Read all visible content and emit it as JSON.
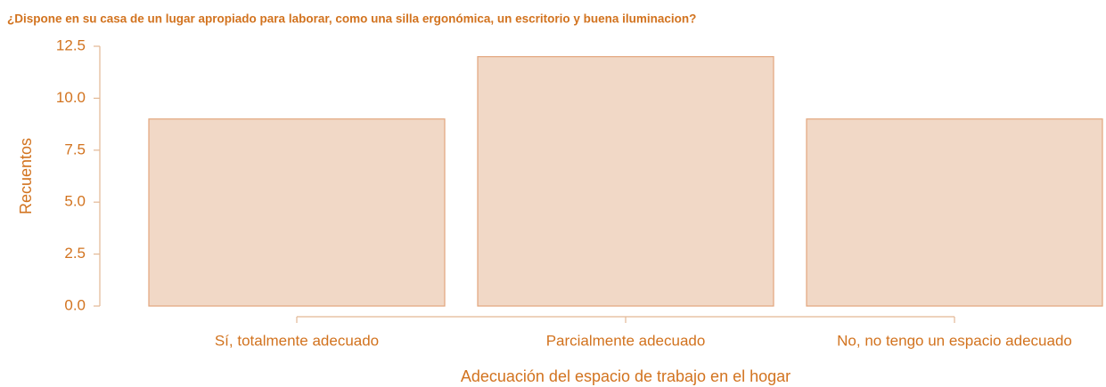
{
  "chart_data": {
    "type": "bar",
    "title": "¿Dispone en su casa de un lugar apropiado para laborar, como una silla ergonómica, un escritorio y buena iluminacion?",
    "x_label": "Adecuación del espacio de trabajo en el hogar",
    "y_label": "Recuentos",
    "categories": [
      "Sí, totalmente adecuado",
      "Parcialmente adecuado",
      "No, no tengo un espacio adecuado"
    ],
    "values": [
      9,
      12,
      9
    ],
    "color": "#f1d8c6",
    "ylim": [
      0,
      12.5
    ],
    "yticks": [
      {
        "value": 0,
        "label": "0.0"
      },
      2.5,
      {
        "value": 5,
        "label": "5.0"
      },
      7.5,
      {
        "value": 10,
        "label": "10.0"
      },
      12.5
    ],
    "grid": false
  }
}
